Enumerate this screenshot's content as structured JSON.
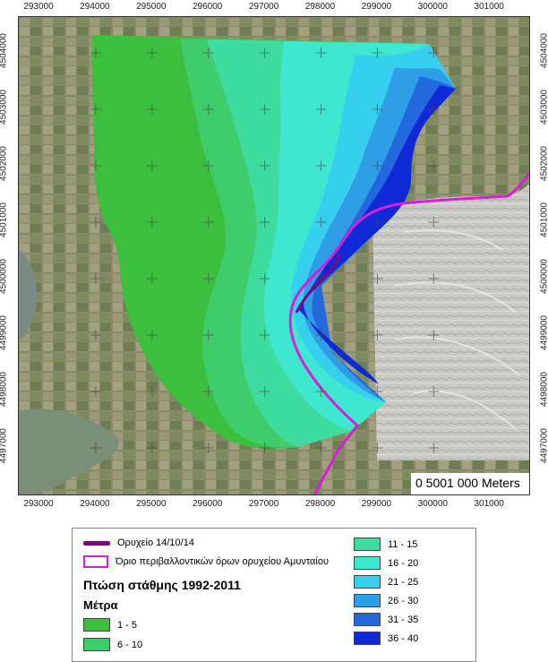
{
  "map": {
    "x_ticks": [
      "293000",
      "294000",
      "295000",
      "296000",
      "297000",
      "298000",
      "299000",
      "300000",
      "301000"
    ],
    "y_ticks": [
      "4504000",
      "4503000",
      "4502000",
      "4501000",
      "4500000",
      "4499000",
      "4498000",
      "4497000"
    ],
    "scalebar_label": "0   5001 000 Meters",
    "colors": {
      "class_1_5": "#3cbf3c",
      "class_6_10": "#3fcc6a",
      "class_11_15": "#3fdca0",
      "class_16_20": "#3ee8d0",
      "class_21_25": "#36cfee",
      "class_26_30": "#2f9ee6",
      "class_31_35": "#2468dd",
      "class_36_40": "#1029d6",
      "mine_line": "#7d0a7d",
      "env_boundary": "#d81fd8"
    }
  },
  "legend": {
    "mine_line_label": "Ορυχείο 14/10/14",
    "boundary_label": "Όριο περιβαλλοντικών όρων ορυχείου Αμυνταίου",
    "title": "Πτώση στάθμης 1992-2011",
    "subtitle": "Μέτρα",
    "classes": [
      {
        "label": "1 - 5",
        "color": "#3cbf3c"
      },
      {
        "label": "6 - 10",
        "color": "#3fcc6a"
      },
      {
        "label": "11 - 15",
        "color": "#3fdca0"
      },
      {
        "label": "16 - 20",
        "color": "#3ee8d0"
      },
      {
        "label": "21 - 25",
        "color": "#36cfee"
      },
      {
        "label": "26 - 30",
        "color": "#2f9ee6"
      },
      {
        "label": "31 - 35",
        "color": "#2468dd"
      },
      {
        "label": "36 - 40",
        "color": "#1029d6"
      }
    ]
  }
}
